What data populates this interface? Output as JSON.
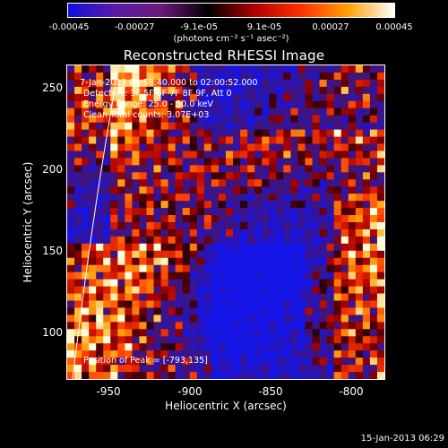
{
  "colorbar": {
    "ticks": [
      "-0.00045",
      "-0.00027",
      "-9.1e-05",
      "9.1e-05",
      "0.00027",
      "0.00045"
    ],
    "unit": "(photons cm⁻² s⁻¹ asec⁻²)",
    "colors": [
      "#1010e0",
      "#5a1aa6",
      "#6a1a7a",
      "#000000",
      "#b00000",
      "#ff3000",
      "#ffa000",
      "#ffffff"
    ]
  },
  "title": "Reconstructed RHESSI Image",
  "info": {
    "time": "7-Jan-2013 01:58:40.000 to 02:00:52.000",
    "detectors": "Detectors: 3F 5F 6F 7F 8F 9F, Att 0",
    "energy": "Energy Range: 25.0 - 50.0 keV",
    "clean": "Clean    Total counts: 3.07E+03",
    "peak": "Position of Peak = [-793,135]"
  },
  "axes": {
    "xlabel": "Heliocentric X (arcsec)",
    "ylabel": "Heliocentric Y (arcsec)",
    "xticks": [
      "-950",
      "-900",
      "-850",
      "-800"
    ],
    "yticks": [
      "250",
      "200",
      "150",
      "100"
    ],
    "xlim": [
      -975,
      -782
    ],
    "ylim": [
      72,
      264
    ]
  },
  "footer": "15-Jan-2013 06:29"
}
